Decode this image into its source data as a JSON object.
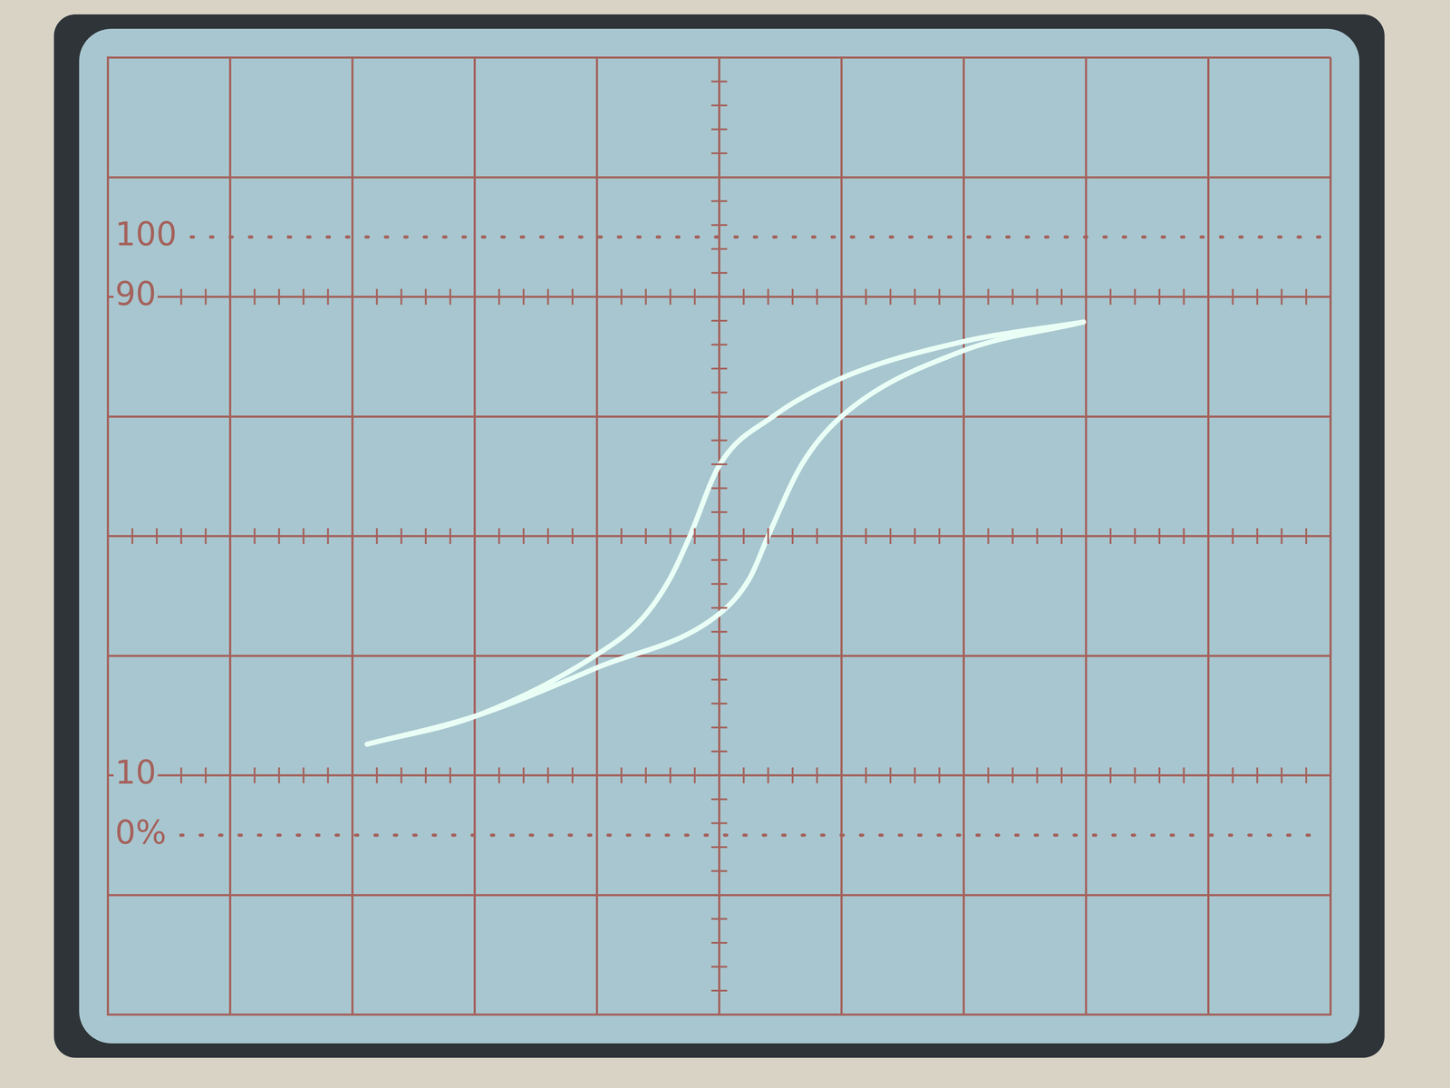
{
  "chart_data": {
    "type": "scatter",
    "series": [
      {
        "color": "#e9fff6",
        "line_style": "solid",
        "marker": "none",
        "x": [
          2.98,
          1.97,
          1.0,
          0.44,
          0.0,
          -0.24,
          -0.4,
          -0.63,
          -1.0,
          -1.98,
          -2.88
        ],
        "values": [
          1.79,
          1.62,
          1.32,
          1.0,
          0.59,
          0.0,
          -0.35,
          -0.69,
          -0.99,
          -1.5,
          -1.74
        ]
      },
      {
        "color": "#e9fff6",
        "line_style": "solid",
        "marker": "none",
        "x": [
          -2.88,
          -1.98,
          -1.0,
          0.0,
          0.25,
          0.4,
          0.67,
          1.0,
          1.97,
          2.98
        ],
        "values": [
          -1.74,
          -1.5,
          -1.1,
          -0.65,
          -0.35,
          0.0,
          0.59,
          1.0,
          1.54,
          1.79
        ]
      }
    ],
    "annotations": [
      {
        "text": "100",
        "y": 2.5
      },
      {
        "text": "90",
        "y": 2
      },
      {
        "text": "10",
        "y": -2
      },
      {
        "text": "0%",
        "y": -2.5
      }
    ],
    "xlim": [
      -5,
      5
    ],
    "xticks": [
      -5,
      -4,
      -3,
      -2,
      -1,
      0,
      1,
      2,
      3,
      4,
      5
    ],
    "ylim": [
      -4,
      4
    ],
    "yticks": [
      -4,
      -3,
      -2,
      -1,
      0,
      1,
      2,
      3,
      4
    ],
    "grid": true,
    "tick_labels": false
  }
}
